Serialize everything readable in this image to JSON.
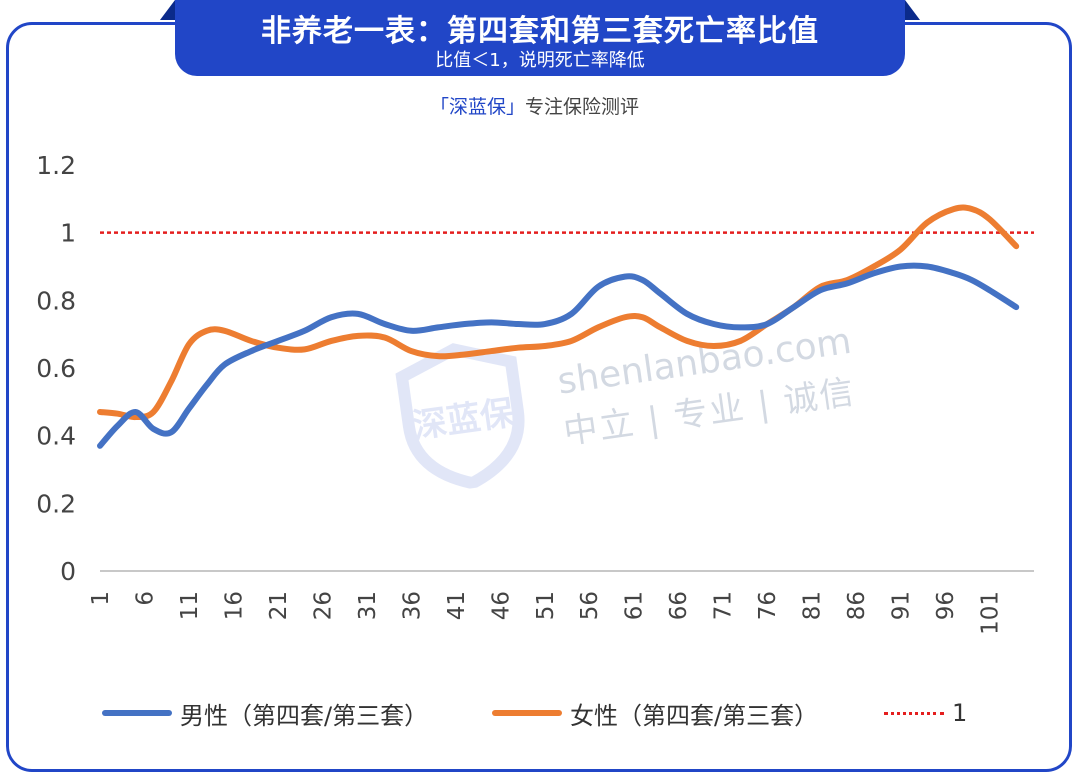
{
  "header": {
    "title": "非养老一表：第四套和第三套死亡率比值",
    "subtitle": "比值＜1，说明死亡率降低"
  },
  "brand": {
    "name": "「深蓝保」",
    "tagline": "专注保险测评"
  },
  "watermark": {
    "logo_text": "深蓝保",
    "url": "shenlanbao.com",
    "slogan": "中立 | 专业 | 诚信"
  },
  "colors": {
    "frame": "#2146c7",
    "male": "#4472c4",
    "female": "#ed7d31",
    "reference": "#e41e1e"
  },
  "chart_data": {
    "type": "line",
    "title": "",
    "xlabel": "",
    "ylabel": "",
    "ylim": [
      0,
      1.2
    ],
    "yticks": [
      "0",
      "0.2",
      "0.4",
      "0.6",
      "0.8",
      "1",
      "1.2"
    ],
    "xticks": [
      "1",
      "6",
      "11",
      "16",
      "21",
      "26",
      "31",
      "36",
      "41",
      "46",
      "51",
      "56",
      "61",
      "66",
      "71",
      "76",
      "81",
      "86",
      "91",
      "96",
      "101"
    ],
    "x": [
      1,
      3,
      5,
      7,
      9,
      11,
      13,
      15,
      18,
      21,
      24,
      27,
      30,
      33,
      36,
      39,
      42,
      45,
      48,
      51,
      54,
      57,
      60,
      62,
      64,
      67,
      70,
      73,
      76,
      79,
      82,
      85,
      88,
      91,
      94,
      97,
      99,
      101,
      104
    ],
    "series": [
      {
        "name": "男性（第四套/第三套）",
        "values": [
          0.37,
          0.43,
          0.47,
          0.42,
          0.41,
          0.48,
          0.55,
          0.61,
          0.65,
          0.68,
          0.71,
          0.75,
          0.76,
          0.73,
          0.71,
          0.72,
          0.73,
          0.735,
          0.73,
          0.73,
          0.76,
          0.84,
          0.87,
          0.86,
          0.82,
          0.76,
          0.73,
          0.72,
          0.73,
          0.78,
          0.83,
          0.85,
          0.88,
          0.9,
          0.9,
          0.88,
          0.86,
          0.83,
          0.78
        ]
      },
      {
        "name": "女性（第四套/第三套）",
        "values": [
          0.47,
          0.465,
          0.455,
          0.47,
          0.56,
          0.67,
          0.71,
          0.71,
          0.68,
          0.66,
          0.655,
          0.68,
          0.695,
          0.69,
          0.65,
          0.635,
          0.64,
          0.65,
          0.66,
          0.665,
          0.68,
          0.72,
          0.75,
          0.75,
          0.72,
          0.68,
          0.665,
          0.68,
          0.73,
          0.78,
          0.84,
          0.86,
          0.9,
          0.95,
          1.03,
          1.07,
          1.07,
          1.04,
          0.96
        ]
      },
      {
        "name": "1",
        "values": [
          1,
          1,
          1,
          1,
          1,
          1,
          1,
          1,
          1,
          1,
          1,
          1,
          1,
          1,
          1,
          1,
          1,
          1,
          1,
          1,
          1,
          1,
          1,
          1,
          1,
          1,
          1,
          1,
          1,
          1,
          1,
          1,
          1,
          1,
          1,
          1,
          1,
          1,
          1
        ]
      }
    ],
    "grid": false,
    "legend_position": "bottom"
  }
}
